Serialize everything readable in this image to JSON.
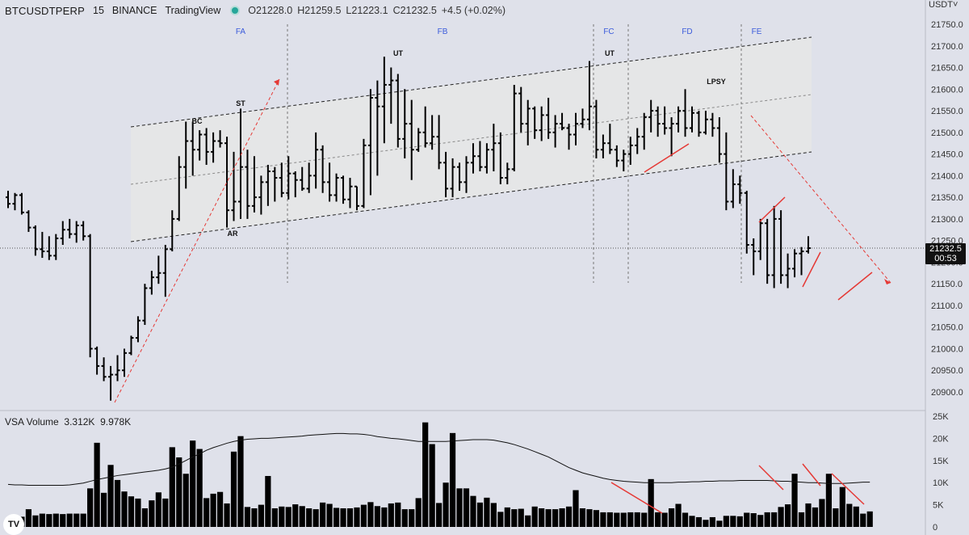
{
  "header": {
    "symbol": "BTCUSDTPERP",
    "interval": "15",
    "exchange": "BINANCE",
    "source": "TradingView",
    "open": "O21228.0",
    "high": "H21259.5",
    "low": "L21223.1",
    "close": "C21232.5",
    "change": "+4.5 (+0.02%)",
    "status_color": "#26a69a"
  },
  "currency_button": "USDT˅",
  "last_price_tag": {
    "price": "21232.5",
    "countdown": "00:53"
  },
  "volume_legend": {
    "name": "VSA Volume",
    "value1": "3.312K",
    "value2": "9.978K"
  },
  "logo_icon": "tradingview-logo-icon",
  "colors": {
    "bars": "#000000",
    "range_fill": "#e6e6e6",
    "annotation_red": "#e53935",
    "phase_label": "#3b5bdb",
    "price_line": "#555555"
  },
  "chart_data": [
    {
      "type": "ohlc",
      "y_axis": {
        "ticks": [
          21750,
          21700,
          21650,
          21600,
          21550,
          21500,
          21450,
          21400,
          21350,
          21300,
          21250,
          21200,
          21150,
          21100,
          21050,
          21000,
          20950,
          20900
        ],
        "tick_labels": [
          "21750.0",
          "21700.0",
          "21650.0",
          "21600.0",
          "21550.0",
          "21500.0",
          "21450.0",
          "21400.0",
          "21350.0",
          "21300.0",
          "21250.0",
          "21200.0",
          "21150.0",
          "21100.0",
          "21050.0",
          "21000.0",
          "20950.0",
          "20900.0"
        ],
        "range": [
          20860,
          21790
        ]
      },
      "last_price": 21232.5,
      "bars": [
        [
          21350,
          21365,
          21325,
          21335
        ],
        [
          21335,
          21360,
          21320,
          21355
        ],
        [
          21355,
          21360,
          21310,
          21315
        ],
        [
          21315,
          21320,
          21270,
          21280
        ],
        [
          21280,
          21285,
          21215,
          21230
        ],
        [
          21230,
          21270,
          21210,
          21225
        ],
        [
          21225,
          21260,
          21205,
          21215
        ],
        [
          21215,
          21265,
          21205,
          21255
        ],
        [
          21255,
          21295,
          21240,
          21275
        ],
        [
          21275,
          21300,
          21255,
          21265
        ],
        [
          21265,
          21295,
          21245,
          21285
        ],
        [
          21285,
          21295,
          21250,
          21260
        ],
        [
          21260,
          21265,
          20980,
          21000
        ],
        [
          21000,
          21005,
          20940,
          20960
        ],
        [
          20960,
          20980,
          20925,
          20935
        ],
        [
          20935,
          20960,
          20880,
          20940
        ],
        [
          20940,
          20985,
          20925,
          20950
        ],
        [
          20950,
          21000,
          20935,
          20990
        ],
        [
          20990,
          21030,
          20985,
          21025
        ],
        [
          21025,
          21075,
          21015,
          21065
        ],
        [
          21065,
          21150,
          21055,
          21140
        ],
        [
          21140,
          21180,
          21125,
          21165
        ],
        [
          21165,
          21215,
          21150,
          21175
        ],
        [
          21175,
          21240,
          21120,
          21230
        ],
        [
          21230,
          21320,
          21225,
          21300
        ],
        [
          21300,
          21445,
          21295,
          21420
        ],
        [
          21420,
          21525,
          21370,
          21480
        ],
        [
          21480,
          21525,
          21400,
          21460
        ],
        [
          21460,
          21505,
          21435,
          21495
        ],
        [
          21495,
          21510,
          21425,
          21455
        ],
        [
          21455,
          21500,
          21430,
          21480
        ],
        [
          21480,
          21505,
          21465,
          21475
        ],
        [
          21475,
          21490,
          21280,
          21320
        ],
        [
          21320,
          21455,
          21295,
          21340
        ],
        [
          21340,
          21555,
          21300,
          21420
        ],
        [
          21420,
          21460,
          21300,
          21330
        ],
        [
          21330,
          21445,
          21315,
          21350
        ],
        [
          21350,
          21400,
          21310,
          21385
        ],
        [
          21385,
          21425,
          21330,
          21410
        ],
        [
          21410,
          21420,
          21340,
          21395
        ],
        [
          21395,
          21430,
          21350,
          21360
        ],
        [
          21360,
          21445,
          21345,
          21405
        ],
        [
          21405,
          21410,
          21350,
          21390
        ],
        [
          21390,
          21420,
          21365,
          21370
        ],
        [
          21370,
          21430,
          21360,
          21400
        ],
        [
          21400,
          21500,
          21370,
          21460
        ],
        [
          21460,
          21470,
          21360,
          21385
        ],
        [
          21385,
          21430,
          21340,
          21355
        ],
        [
          21355,
          21405,
          21340,
          21395
        ],
        [
          21395,
          21400,
          21335,
          21345
        ],
        [
          21345,
          21395,
          21325,
          21375
        ],
        [
          21375,
          21375,
          21320,
          21330
        ],
        [
          21330,
          21485,
          21325,
          21470
        ],
        [
          21470,
          21600,
          21355,
          21580
        ],
        [
          21580,
          21620,
          21400,
          21560
        ],
        [
          21560,
          21675,
          21475,
          21610
        ],
        [
          21610,
          21650,
          21520,
          21620
        ],
        [
          21620,
          21635,
          21465,
          21485
        ],
        [
          21485,
          21600,
          21440,
          21520
        ],
        [
          21520,
          21575,
          21390,
          21460
        ],
        [
          21460,
          21510,
          21455,
          21500
        ],
        [
          21500,
          21560,
          21465,
          21475
        ],
        [
          21475,
          21540,
          21460,
          21490
        ],
        [
          21490,
          21540,
          21415,
          21430
        ],
        [
          21430,
          21455,
          21350,
          21370
        ],
        [
          21370,
          21440,
          21350,
          21420
        ],
        [
          21420,
          21430,
          21365,
          21385
        ],
        [
          21385,
          21445,
          21360,
          21430
        ],
        [
          21430,
          21475,
          21405,
          21445
        ],
        [
          21445,
          21480,
          21410,
          21420
        ],
        [
          21420,
          21475,
          21405,
          21460
        ],
        [
          21460,
          21520,
          21410,
          21475
        ],
        [
          21475,
          21500,
          21380,
          21395
        ],
        [
          21395,
          21430,
          21380,
          21415
        ],
        [
          21415,
          21610,
          21410,
          21590
        ],
        [
          21590,
          21605,
          21500,
          21520
        ],
        [
          21520,
          21575,
          21470,
          21555
        ],
        [
          21555,
          21560,
          21485,
          21505
        ],
        [
          21505,
          21560,
          21480,
          21540
        ],
        [
          21540,
          21580,
          21485,
          21500
        ],
        [
          21500,
          21540,
          21465,
          21520
        ],
        [
          21520,
          21545,
          21505,
          21510
        ],
        [
          21510,
          21520,
          21460,
          21495
        ],
        [
          21495,
          21545,
          21470,
          21520
        ],
        [
          21520,
          21555,
          21510,
          21530
        ],
        [
          21530,
          21665,
          21505,
          21560
        ],
        [
          21560,
          21575,
          21440,
          21460
        ],
        [
          21460,
          21495,
          21440,
          21475
        ],
        [
          21475,
          21520,
          21450,
          21460
        ],
        [
          21460,
          21470,
          21420,
          21435
        ],
        [
          21435,
          21460,
          21410,
          21450
        ],
        [
          21450,
          21490,
          21425,
          21470
        ],
        [
          21470,
          21510,
          21450,
          21490
        ],
        [
          21490,
          21545,
          21460,
          21535
        ],
        [
          21535,
          21575,
          21500,
          21550
        ],
        [
          21550,
          21560,
          21490,
          21520
        ],
        [
          21520,
          21560,
          21495,
          21510
        ],
        [
          21510,
          21535,
          21445,
          21520
        ],
        [
          21520,
          21560,
          21500,
          21550
        ],
        [
          21550,
          21600,
          21490,
          21510
        ],
        [
          21510,
          21560,
          21500,
          21545
        ],
        [
          21545,
          21550,
          21490,
          21500
        ],
        [
          21500,
          21550,
          21495,
          21530
        ],
        [
          21530,
          21545,
          21490,
          21510
        ],
        [
          21510,
          21535,
          21430,
          21450
        ],
        [
          21450,
          21500,
          21320,
          21340
        ],
        [
          21340,
          21415,
          21325,
          21380
        ],
        [
          21380,
          21400,
          21335,
          21360
        ],
        [
          21360,
          21365,
          21220,
          21240
        ],
        [
          21240,
          21255,
          21170,
          21225
        ],
        [
          21225,
          21300,
          21205,
          21290
        ],
        [
          21290,
          21300,
          21150,
          21170
        ],
        [
          21170,
          21330,
          21140,
          21300
        ],
        [
          21300,
          21320,
          21150,
          21170
        ],
        [
          21170,
          21220,
          21140,
          21185
        ],
        [
          21185,
          21230,
          21165,
          21220
        ],
        [
          21220,
          21235,
          21170,
          21225
        ],
        [
          21225,
          21260,
          21220,
          21232.5
        ]
      ],
      "annotations": {
        "phases": [
          "FA",
          "FB",
          "FC",
          "FD",
          "FE"
        ],
        "events": [
          "BC",
          "ST",
          "AR",
          "UT",
          "UT",
          "LPSY"
        ]
      }
    },
    {
      "type": "bar",
      "name": "VSA Volume",
      "y_axis": {
        "ticks": [
          25000,
          20000,
          15000,
          10000,
          5000,
          0
        ],
        "tick_labels": [
          "25K",
          "20K",
          "15K",
          "10K",
          "5K",
          "0"
        ],
        "range": [
          0,
          25000
        ]
      },
      "values": [
        1800,
        2200,
        2300,
        4000,
        2600,
        3000,
        2900,
        3000,
        2900,
        3000,
        3000,
        3000,
        8700,
        19000,
        7700,
        14000,
        10600,
        8000,
        6900,
        6400,
        4200,
        6000,
        7800,
        6400,
        18000,
        15700,
        12000,
        19500,
        17600,
        6500,
        7500,
        7900,
        5300,
        17000,
        20500,
        4500,
        4200,
        5000,
        11500,
        4200,
        4600,
        4500,
        5100,
        4700,
        4200,
        4000,
        5500,
        5200,
        4300,
        4200,
        4200,
        4400,
        5000,
        5600,
        4700,
        4400,
        5300,
        5500,
        4000,
        4000,
        6500,
        23600,
        18700,
        5400,
        10000,
        21200,
        8700,
        8700,
        7000,
        5500,
        6600,
        5400,
        3400,
        4400,
        4000,
        4100,
        2600,
        4600,
        4200,
        4000,
        4000,
        4200,
        4600,
        8300,
        4200,
        4000,
        3800,
        3300,
        3300,
        3200,
        3200,
        3300,
        3300,
        3200,
        10800,
        3300,
        3200,
        4200,
        5200,
        3200,
        2500,
        2200,
        1600,
        2200,
        1400,
        2500,
        2500,
        2400,
        3200,
        3100,
        2700,
        3300,
        3300,
        4500,
        5100,
        12000,
        3300,
        5300,
        4400,
        6300,
        12000,
        4200,
        9000,
        5200,
        4600,
        3000,
        3500
      ],
      "moving_average": [
        9600,
        9500,
        9500,
        9400,
        9400,
        9400,
        9400,
        9400,
        9400,
        9500,
        9700,
        9900,
        10300,
        10700,
        11000,
        11300,
        11600,
        11800,
        12000,
        12200,
        12400,
        12600,
        12800,
        13100,
        13500,
        14200,
        15000,
        15800,
        16500,
        17300,
        17900,
        18400,
        18900,
        19300,
        19600,
        19800,
        19900,
        20000,
        20000,
        20100,
        20200,
        20300,
        20400,
        20500,
        20700,
        20800,
        20900,
        21000,
        21100,
        21100,
        21000,
        21000,
        20900,
        20700,
        20400,
        20200,
        20000,
        19900,
        19700,
        19500,
        19300,
        19300,
        19300,
        19300,
        19300,
        19400,
        19500,
        19600,
        19700,
        19700,
        19700,
        19600,
        19300,
        19000,
        18600,
        18100,
        17600,
        17000,
        16400,
        15800,
        15000,
        14200,
        13400,
        12800,
        12200,
        11800,
        11400,
        11000,
        10700,
        10500,
        10300,
        10200,
        10100,
        10000,
        10000,
        10000,
        10000,
        10000,
        10100,
        10100,
        10200,
        10200,
        10300,
        10300,
        10400,
        10400,
        10400,
        10500,
        10500,
        10500,
        10500,
        10500,
        10400,
        10300,
        10300,
        10200,
        10100,
        10000,
        10000,
        9900,
        9800,
        9800,
        9800,
        9900,
        10000,
        10100,
        10100
      ]
    }
  ]
}
